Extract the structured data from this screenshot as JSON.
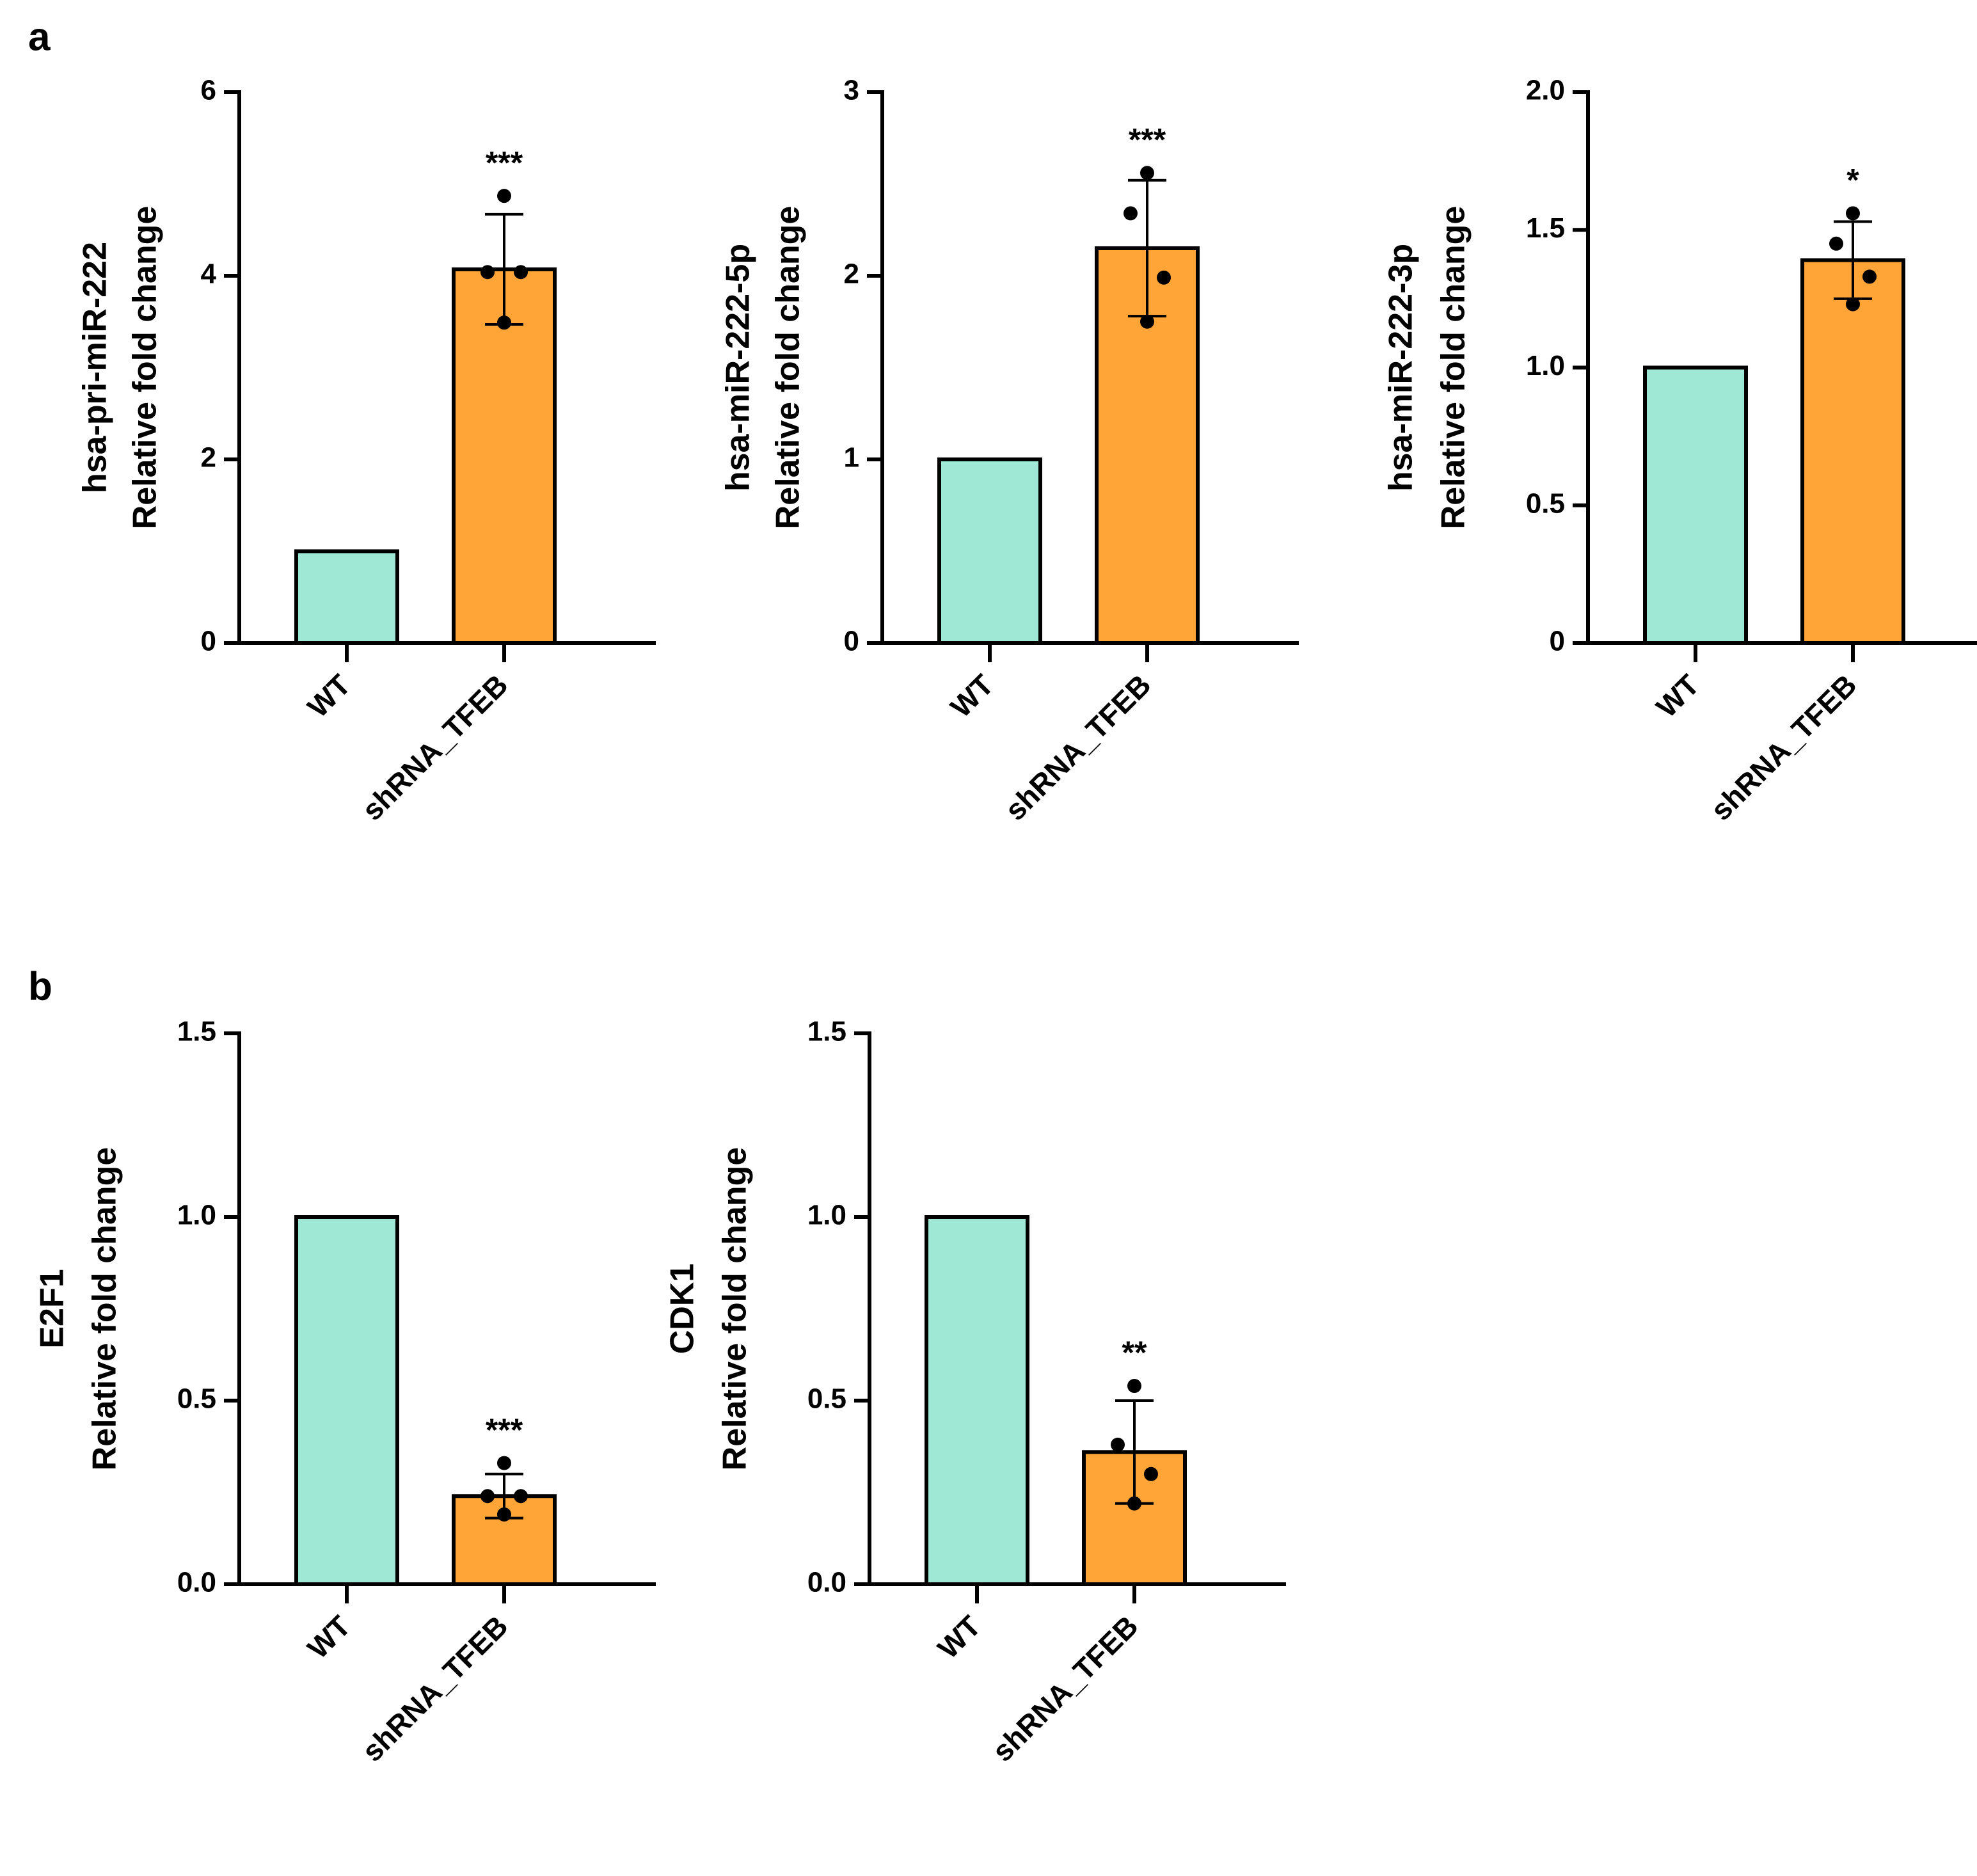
{
  "panel_labels": [
    "a",
    "b"
  ],
  "chart_data": [
    {
      "type": "bar",
      "ylabel": [
        "hsa-pri-miR-222",
        "Relative fold change"
      ],
      "categories": [
        "WT",
        "shRNA_TFEB"
      ],
      "values": [
        1,
        4.07
      ],
      "errors": [
        null,
        0.6
      ],
      "points": [
        null,
        [
          4.87,
          4.04,
          4.04,
          3.49
        ]
      ],
      "colors": [
        "#9fe8d6",
        "#ffa436"
      ],
      "annotation": "***",
      "ylim": [
        0,
        6
      ],
      "yticks": [
        0,
        2,
        4,
        6
      ]
    },
    {
      "type": "bar",
      "ylabel": [
        "hsa-miR-222-5p",
        "Relative fold change"
      ],
      "categories": [
        "WT",
        "shRNA_TFEB"
      ],
      "values": [
        1,
        2.15
      ],
      "errors": [
        null,
        0.37
      ],
      "points": [
        null,
        [
          2.56,
          2.34,
          1.99,
          1.75
        ]
      ],
      "colors": [
        "#9fe8d6",
        "#ffa436"
      ],
      "annotation": "***",
      "ylim": [
        0,
        3
      ],
      "yticks": [
        0,
        1,
        2,
        3
      ]
    },
    {
      "type": "bar",
      "ylabel": [
        "hsa-miR-222-3p",
        "Relative fold change"
      ],
      "categories": [
        "WT",
        "shRNA_TFEB"
      ],
      "values": [
        1,
        1.39
      ],
      "errors": [
        null,
        0.14
      ],
      "points": [
        null,
        [
          1.56,
          1.45,
          1.33,
          1.23
        ]
      ],
      "colors": [
        "#9fe8d6",
        "#ffa436"
      ],
      "annotation": "*",
      "ylim": [
        0,
        2
      ],
      "yticks": [
        0,
        0.5,
        {
          "value": 1,
          "label": "1.0"
        },
        1.5,
        {
          "value": 2,
          "label": "2.0"
        }
      ]
    },
    {
      "type": "bar",
      "ylabel": [
        "E2F1",
        "Relative fold change"
      ],
      "categories": [
        "WT",
        "shRNA_TFEB"
      ],
      "values": [
        1,
        0.24
      ],
      "errors": [
        null,
        0.06
      ],
      "points": [
        null,
        [
          0.33,
          0.24,
          0.24,
          0.19
        ]
      ],
      "colors": [
        "#9fe8d6",
        "#ffa436"
      ],
      "annotation": "***",
      "ylim": [
        0,
        1.5
      ],
      "yticks": [
        {
          "value": 0,
          "label": "0.0"
        },
        0.5,
        {
          "value": 1,
          "label": "1.0"
        },
        1.5
      ]
    },
    {
      "type": "bar",
      "ylabel": [
        "CDK1",
        "Relative fold change"
      ],
      "categories": [
        "WT",
        "shRNA_TFEB"
      ],
      "values": [
        1,
        0.36
      ],
      "errors": [
        null,
        0.14
      ],
      "points": [
        null,
        [
          0.54,
          0.38,
          0.3,
          0.22
        ]
      ],
      "colors": [
        "#9fe8d6",
        "#ffa436"
      ],
      "annotation": "**",
      "ylim": [
        0,
        1.5
      ],
      "yticks": [
        {
          "value": 0,
          "label": "0.0"
        },
        0.5,
        {
          "value": 1,
          "label": "1.0"
        },
        1.5
      ]
    }
  ]
}
